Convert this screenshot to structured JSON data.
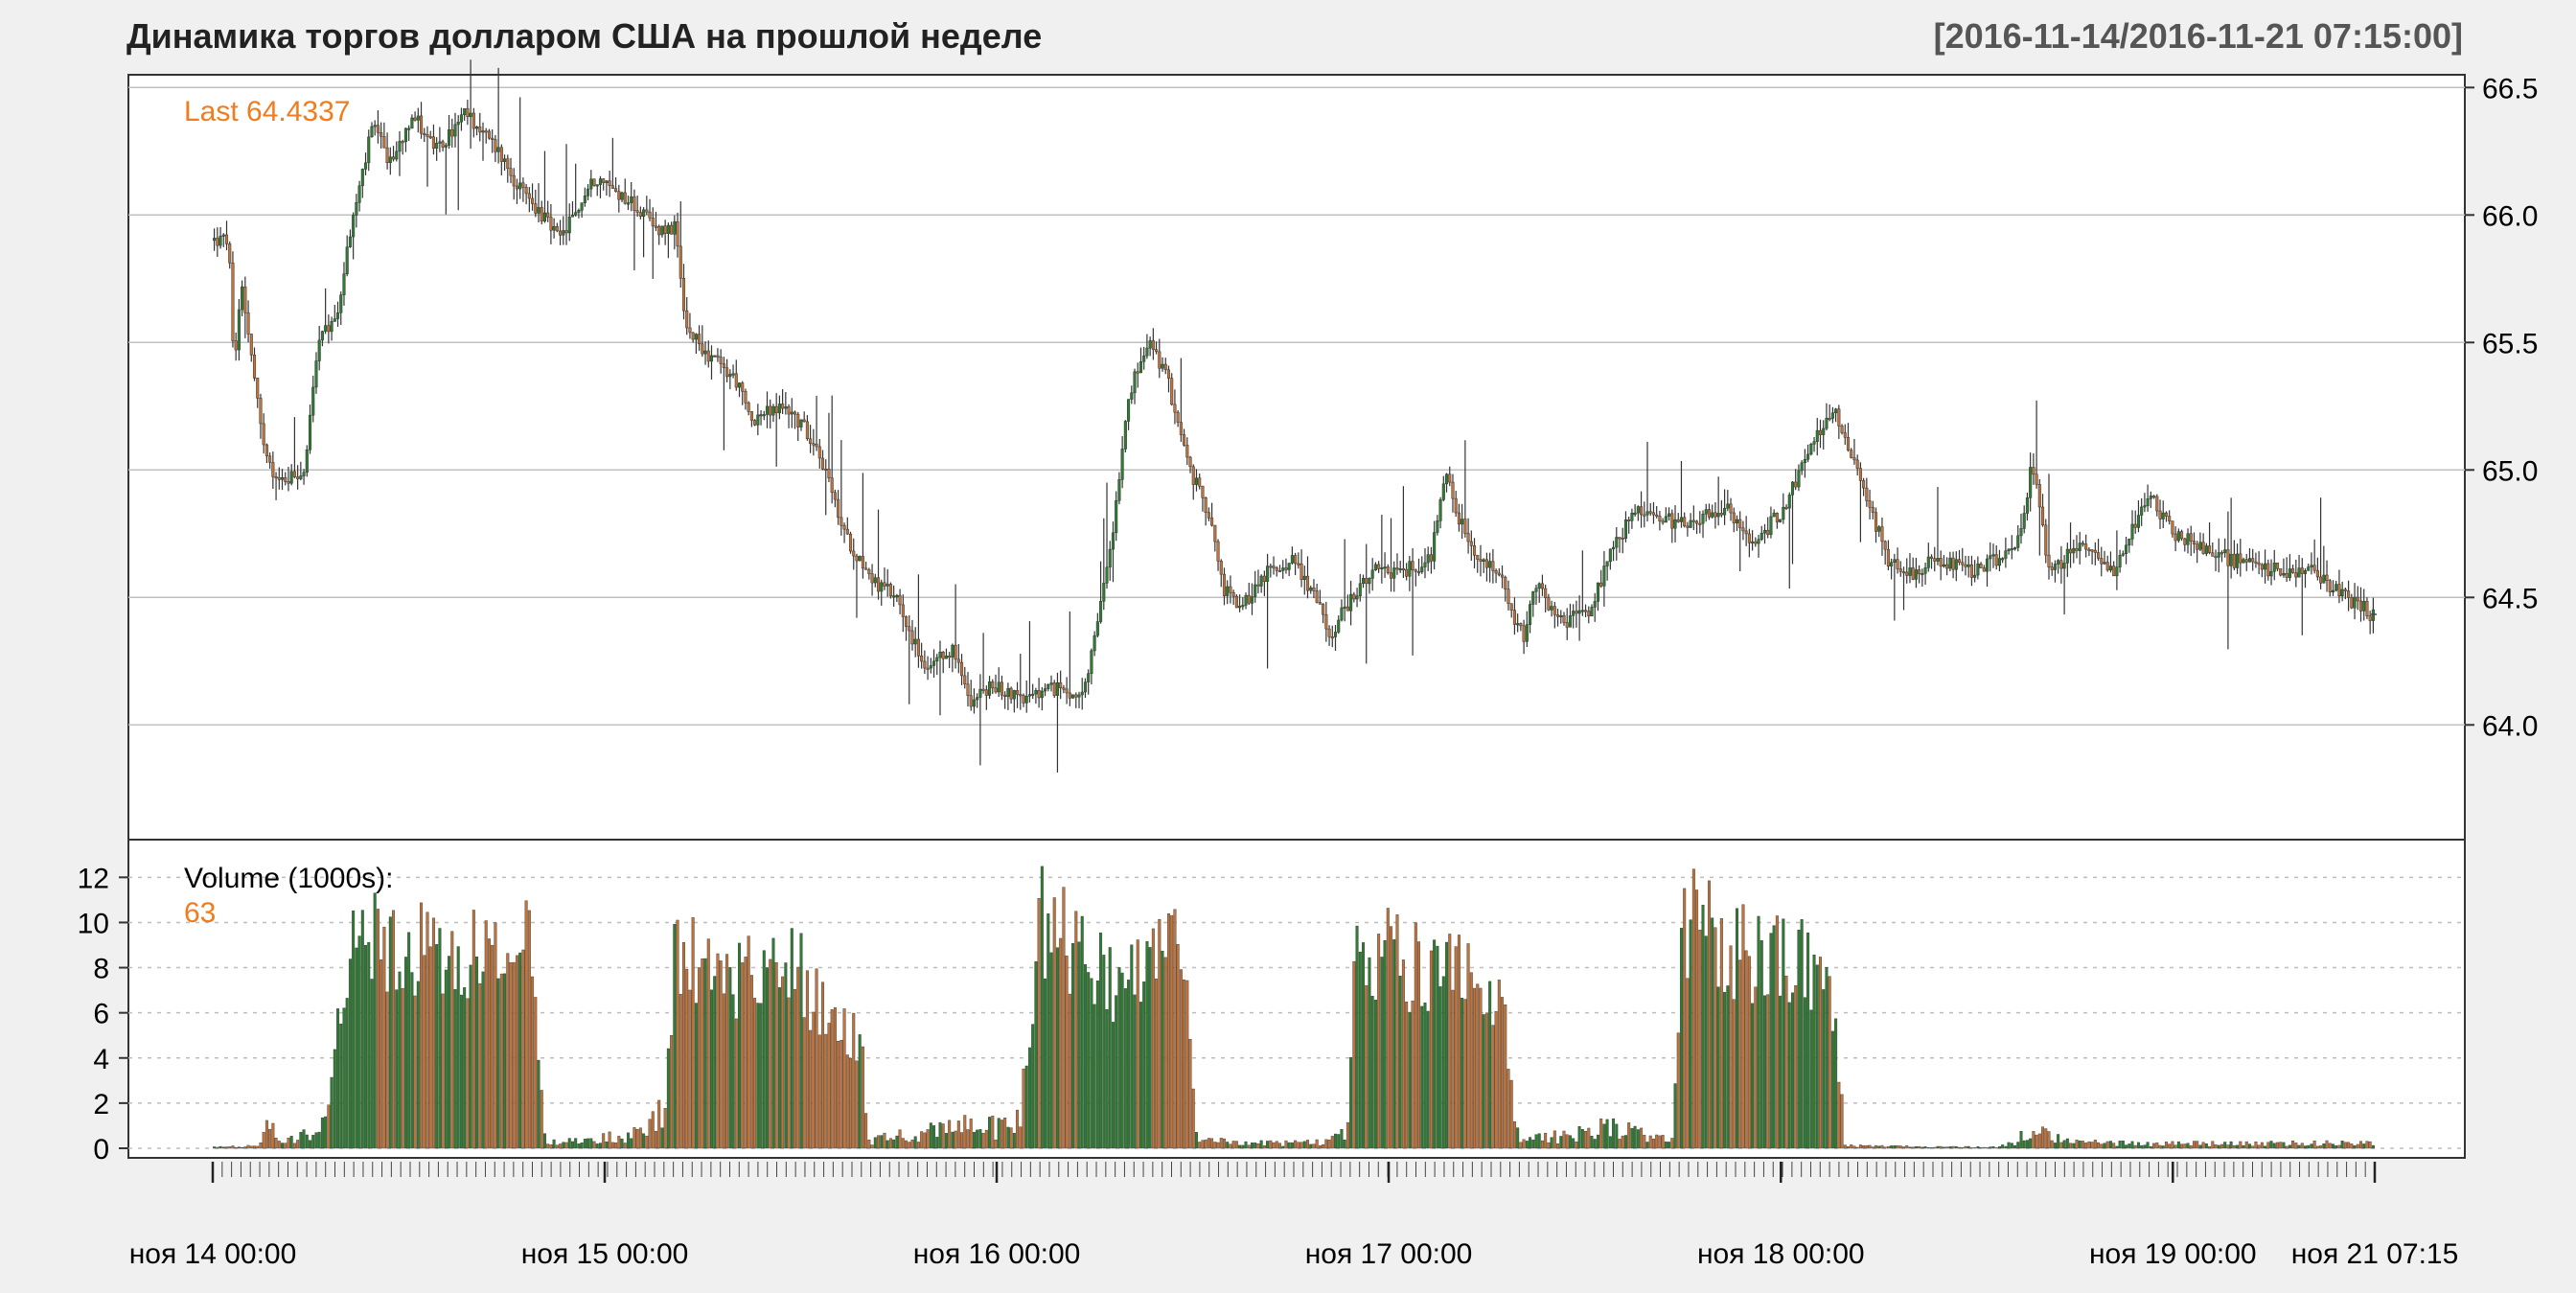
{
  "chart_data": {
    "type": "candlestick",
    "title": "Динамика торгов долларом США на прошлой неделе",
    "date_range_label": "[2016-11-14/2016-11-21 07:15:00]",
    "last_label": "Last 64.4337",
    "last_value": 64.4337,
    "price_ylim": [
      63.55,
      66.55
    ],
    "price_ticks": [
      "66.5",
      "66.0",
      "65.5",
      "65.0",
      "64.5",
      "64.0"
    ],
    "volume_label": "Volume (1000s):",
    "volume_last": "63",
    "volume_ylim": [
      0,
      13.5
    ],
    "volume_ticks": [
      "12",
      "10",
      "8",
      "6",
      "4",
      "2",
      "0"
    ],
    "x_tick_labels": [
      "ноя 14 00:00",
      "ноя 15 00:00",
      "ноя 16 00:00",
      "ноя 17 00:00",
      "ноя 18 00:00",
      "ноя 19 00:00",
      "ноя 21 07:15"
    ],
    "x_label_positions": [
      0.0,
      0.1813,
      0.3626,
      0.5439,
      0.7253,
      0.9066,
      1.0
    ],
    "n_bars": 700,
    "grid": true,
    "price_keypoints": [
      [
        0,
        65.9
      ],
      [
        0.008,
        65.9
      ],
      [
        0.011,
        65.35
      ],
      [
        0.015,
        65.75
      ],
      [
        0.026,
        65.15
      ],
      [
        0.035,
        64.95
      ],
      [
        0.05,
        65.0
      ],
      [
        0.058,
        65.5
      ],
      [
        0.068,
        65.6
      ],
      [
        0.076,
        65.95
      ],
      [
        0.088,
        66.35
      ],
      [
        0.098,
        66.2
      ],
      [
        0.11,
        66.4
      ],
      [
        0.124,
        66.25
      ],
      [
        0.14,
        66.4
      ],
      [
        0.158,
        66.25
      ],
      [
        0.17,
        66.1
      ],
      [
        0.182,
        66.0
      ],
      [
        0.192,
        65.9
      ],
      [
        0.212,
        66.15
      ],
      [
        0.232,
        66.05
      ],
      [
        0.245,
        65.95
      ],
      [
        0.256,
        65.95
      ],
      [
        0.262,
        65.55
      ],
      [
        0.275,
        65.45
      ],
      [
        0.29,
        65.35
      ],
      [
        0.298,
        65.2
      ],
      [
        0.318,
        65.25
      ],
      [
        0.335,
        65.1
      ],
      [
        0.35,
        64.75
      ],
      [
        0.368,
        64.55
      ],
      [
        0.38,
        64.5
      ],
      [
        0.395,
        64.2
      ],
      [
        0.41,
        64.3
      ],
      [
        0.42,
        64.1
      ],
      [
        0.433,
        64.15
      ],
      [
        0.452,
        64.1
      ],
      [
        0.47,
        64.15
      ],
      [
        0.483,
        64.1
      ],
      [
        0.49,
        64.35
      ],
      [
        0.5,
        64.8
      ],
      [
        0.508,
        65.3
      ],
      [
        0.52,
        65.5
      ],
      [
        0.53,
        65.35
      ],
      [
        0.542,
        65.0
      ],
      [
        0.555,
        64.8
      ],
      [
        0.56,
        64.55
      ],
      [
        0.57,
        64.45
      ],
      [
        0.585,
        64.6
      ],
      [
        0.6,
        64.65
      ],
      [
        0.612,
        64.5
      ],
      [
        0.62,
        64.35
      ],
      [
        0.632,
        64.5
      ],
      [
        0.645,
        64.6
      ],
      [
        0.66,
        64.6
      ],
      [
        0.676,
        64.65
      ],
      [
        0.684,
        65.0
      ],
      [
        0.69,
        64.85
      ],
      [
        0.7,
        64.65
      ],
      [
        0.714,
        64.6
      ],
      [
        0.722,
        64.4
      ],
      [
        0.728,
        64.35
      ],
      [
        0.735,
        64.55
      ],
      [
        0.748,
        64.4
      ],
      [
        0.765,
        64.45
      ],
      [
        0.775,
        64.65
      ],
      [
        0.79,
        64.85
      ],
      [
        0.805,
        64.8
      ],
      [
        0.82,
        64.8
      ],
      [
        0.84,
        64.85
      ],
      [
        0.855,
        64.7
      ],
      [
        0.872,
        64.85
      ],
      [
        0.885,
        65.05
      ],
      [
        0.9,
        65.25
      ],
      [
        0.916,
        64.95
      ],
      [
        0.93,
        64.65
      ],
      [
        0.944,
        64.6
      ],
      [
        0.958,
        64.65
      ],
      [
        0.976,
        64.6
      ],
      [
        0.992,
        64.65
      ],
      [
        0.998,
        64.7
      ],
      [
        1.005,
        64.75
      ],
      [
        1.01,
        65.05
      ],
      [
        1.02,
        64.6
      ],
      [
        1.04,
        64.72
      ],
      [
        1.055,
        64.6
      ],
      [
        1.075,
        64.9
      ],
      [
        1.09,
        64.75
      ],
      [
        1.12,
        64.65
      ],
      [
        1.15,
        64.6
      ],
      [
        1.165,
        64.6
      ],
      [
        1.2,
        64.43
      ]
    ],
    "volume_keypoints": [
      [
        0,
        0.05
      ],
      [
        0.025,
        0.1
      ],
      [
        0.03,
        1.0
      ],
      [
        0.036,
        0.2
      ],
      [
        0.05,
        0.5
      ],
      [
        0.062,
        0.9
      ],
      [
        0.075,
        9.5
      ],
      [
        0.12,
        9.0
      ],
      [
        0.14,
        9.2
      ],
      [
        0.16,
        8.6
      ],
      [
        0.168,
        7.0
      ],
      [
        0.175,
        9.8
      ],
      [
        0.184,
        0.2
      ],
      [
        0.2,
        0.3
      ],
      [
        0.235,
        0.6
      ],
      [
        0.25,
        1.5
      ],
      [
        0.256,
        9.2
      ],
      [
        0.28,
        7.5
      ],
      [
        0.3,
        8.4
      ],
      [
        0.32,
        8.8
      ],
      [
        0.34,
        6.0
      ],
      [
        0.36,
        5.2
      ],
      [
        0.364,
        0.3
      ],
      [
        0.39,
        0.6
      ],
      [
        0.42,
        1.0
      ],
      [
        0.44,
        0.9
      ],
      [
        0.452,
        2.4
      ],
      [
        0.458,
        10.5
      ],
      [
        0.49,
        8.6
      ],
      [
        0.5,
        7.5
      ],
      [
        0.52,
        8.8
      ],
      [
        0.54,
        9.6
      ],
      [
        0.546,
        0.3
      ],
      [
        0.6,
        0.2
      ],
      [
        0.62,
        0.25
      ],
      [
        0.63,
        0.7
      ],
      [
        0.634,
        9.5
      ],
      [
        0.66,
        8.5
      ],
      [
        0.68,
        7.8
      ],
      [
        0.7,
        8.0
      ],
      [
        0.715,
        7.0
      ],
      [
        0.726,
        0.3
      ],
      [
        0.76,
        0.6
      ],
      [
        0.78,
        1.0
      ],
      [
        0.8,
        0.4
      ],
      [
        0.81,
        0.6
      ],
      [
        0.816,
        10.6
      ],
      [
        0.84,
        9.2
      ],
      [
        0.86,
        8.7
      ],
      [
        0.88,
        8.6
      ],
      [
        0.9,
        6.5
      ],
      [
        0.906,
        0.1
      ],
      [
        0.96,
        0.05
      ],
      [
        0.99,
        0.05
      ],
      [
        1.0,
        0.2
      ],
      [
        1.01,
        0.8
      ],
      [
        1.03,
        0.3
      ],
      [
        1.05,
        0.2
      ]
    ]
  },
  "colors": {
    "background": "#f0f0f0",
    "panel": "#ffffff",
    "up": "#2e7d32",
    "down": "#c0733a",
    "wick": "#333333",
    "last_label": "#f07c1e",
    "title": "#222222",
    "range_label": "#555555",
    "grid": "#c0c0c0"
  }
}
